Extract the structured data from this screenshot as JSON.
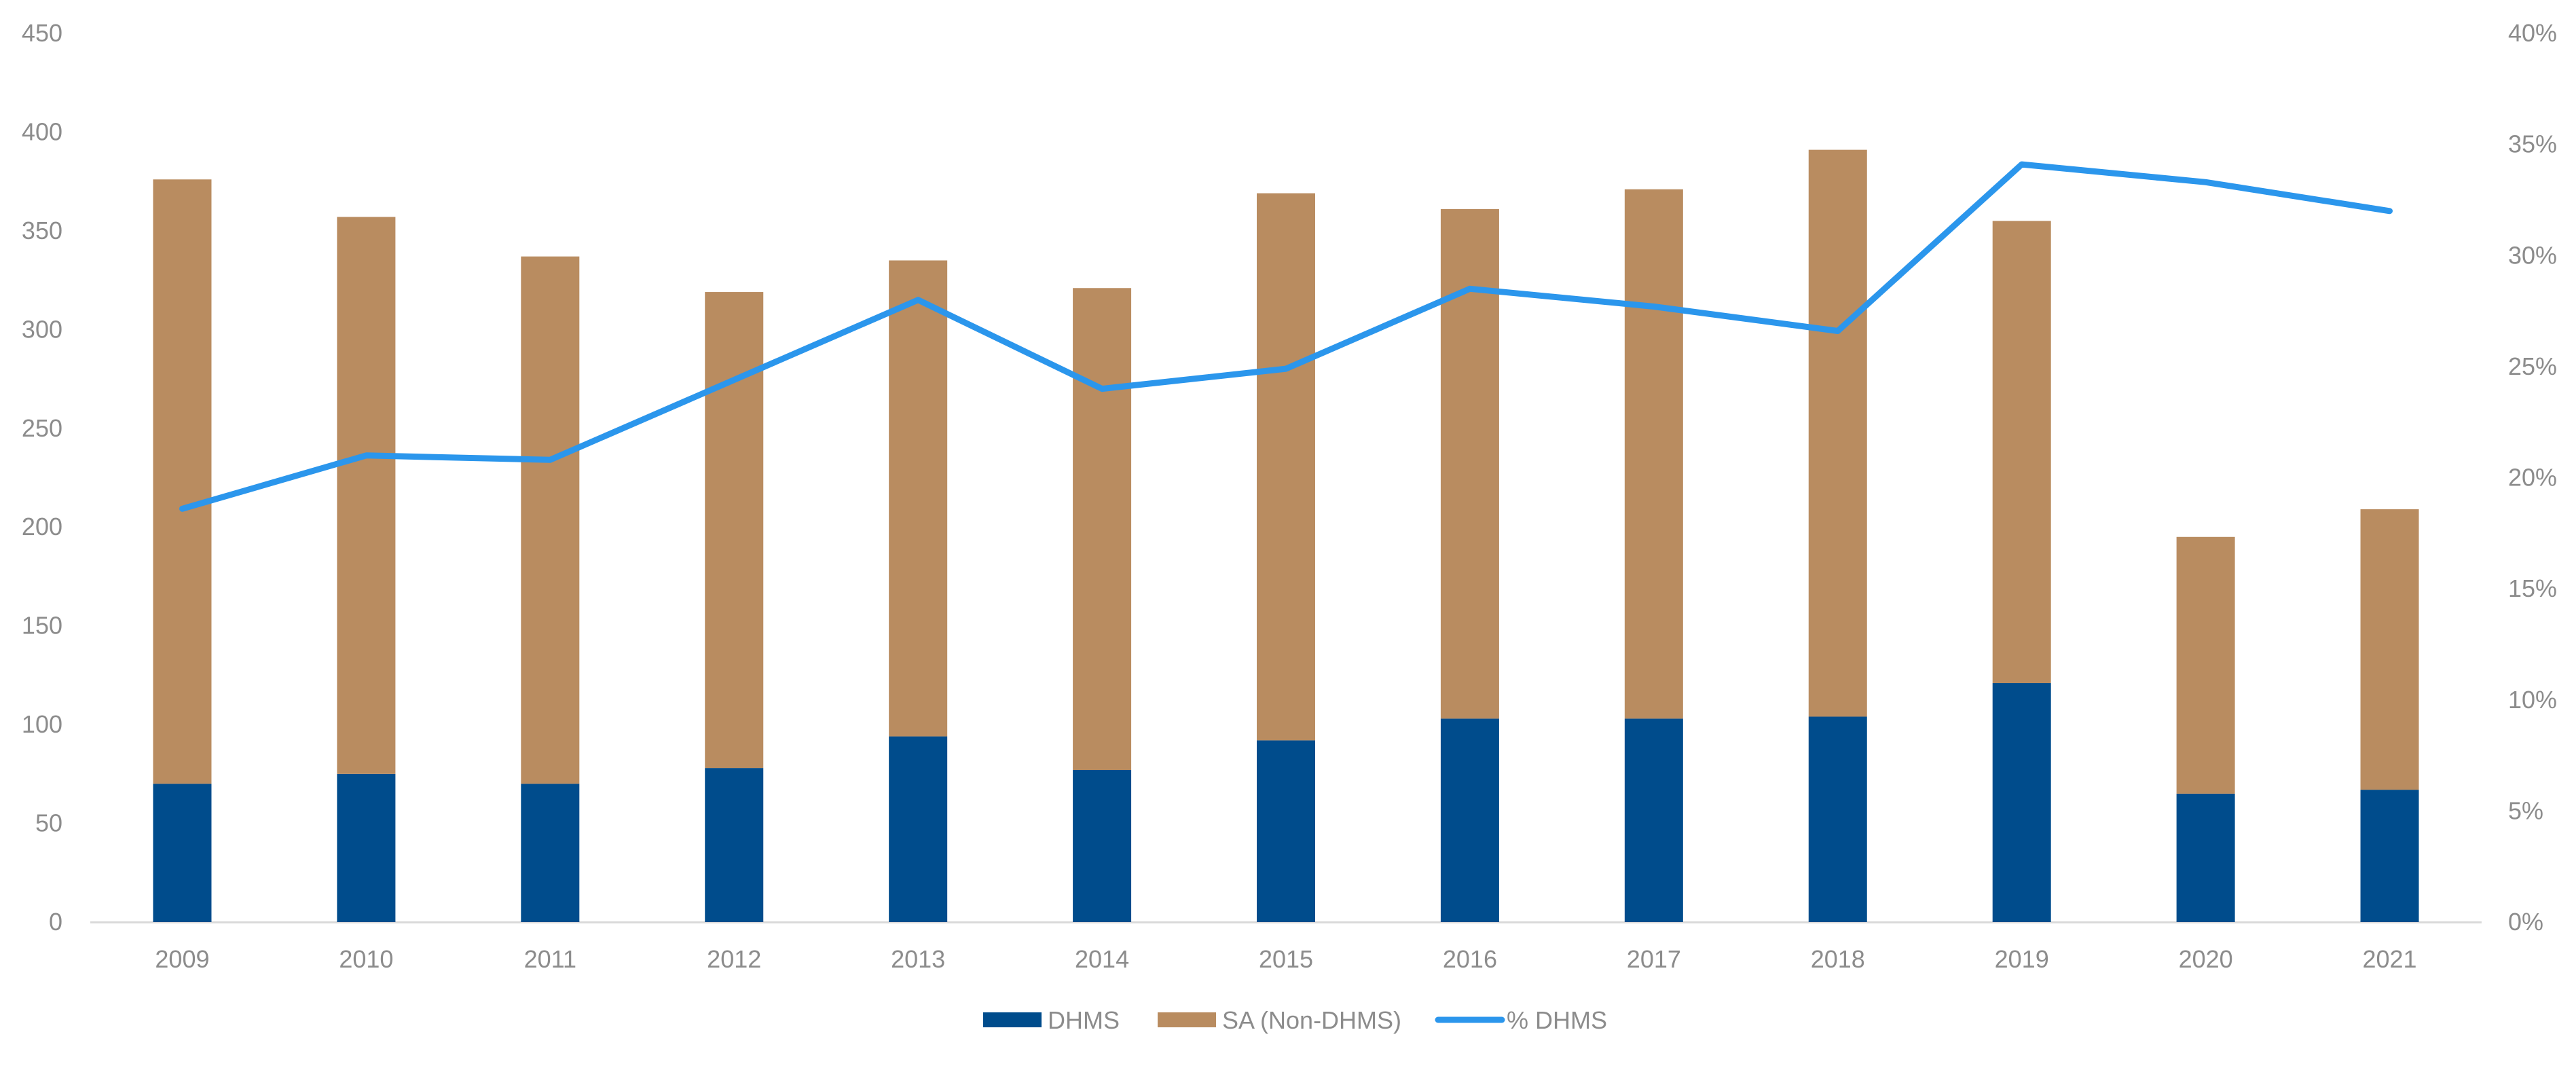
{
  "chart_data": {
    "type": "bar",
    "stacked": true,
    "title": "",
    "xlabel": "",
    "ylabel": "",
    "y2label": "",
    "categories": [
      "2009",
      "2010",
      "2011",
      "2012",
      "2013",
      "2014",
      "2015",
      "2016",
      "2017",
      "2018",
      "2019",
      "2020",
      "2021"
    ],
    "series": [
      {
        "name": "DHMS",
        "type": "bar",
        "axis": "left",
        "color": "#004c8c",
        "values": [
          70,
          75,
          70,
          78,
          94,
          77,
          92,
          103,
          103,
          104,
          121,
          65,
          67
        ]
      },
      {
        "name": "SA (Non-DHMS)",
        "type": "bar",
        "axis": "left",
        "color": "#b98c60",
        "values": [
          306,
          282,
          267,
          241,
          241,
          244,
          277,
          258,
          268,
          287,
          234,
          130,
          142
        ]
      },
      {
        "name": "% DHMS",
        "type": "line",
        "axis": "right",
        "color": "#2b96ec",
        "values": [
          0.186,
          0.21,
          0.208,
          0.244,
          0.28,
          0.24,
          0.249,
          0.285,
          0.277,
          0.266,
          0.341,
          0.333,
          0.32
        ]
      }
    ],
    "yAxisLeft": {
      "min": 0,
      "max": 450,
      "ticks": [
        "0",
        "50",
        "100",
        "150",
        "200",
        "250",
        "300",
        "350",
        "400",
        "450"
      ]
    },
    "yAxisRight": {
      "min": 0,
      "max": 0.4,
      "ticks": [
        "0%",
        "5%",
        "10%",
        "15%",
        "20%",
        "25%",
        "30%",
        "35%",
        "40%"
      ]
    },
    "grid": false,
    "legend": "bottom-center"
  }
}
